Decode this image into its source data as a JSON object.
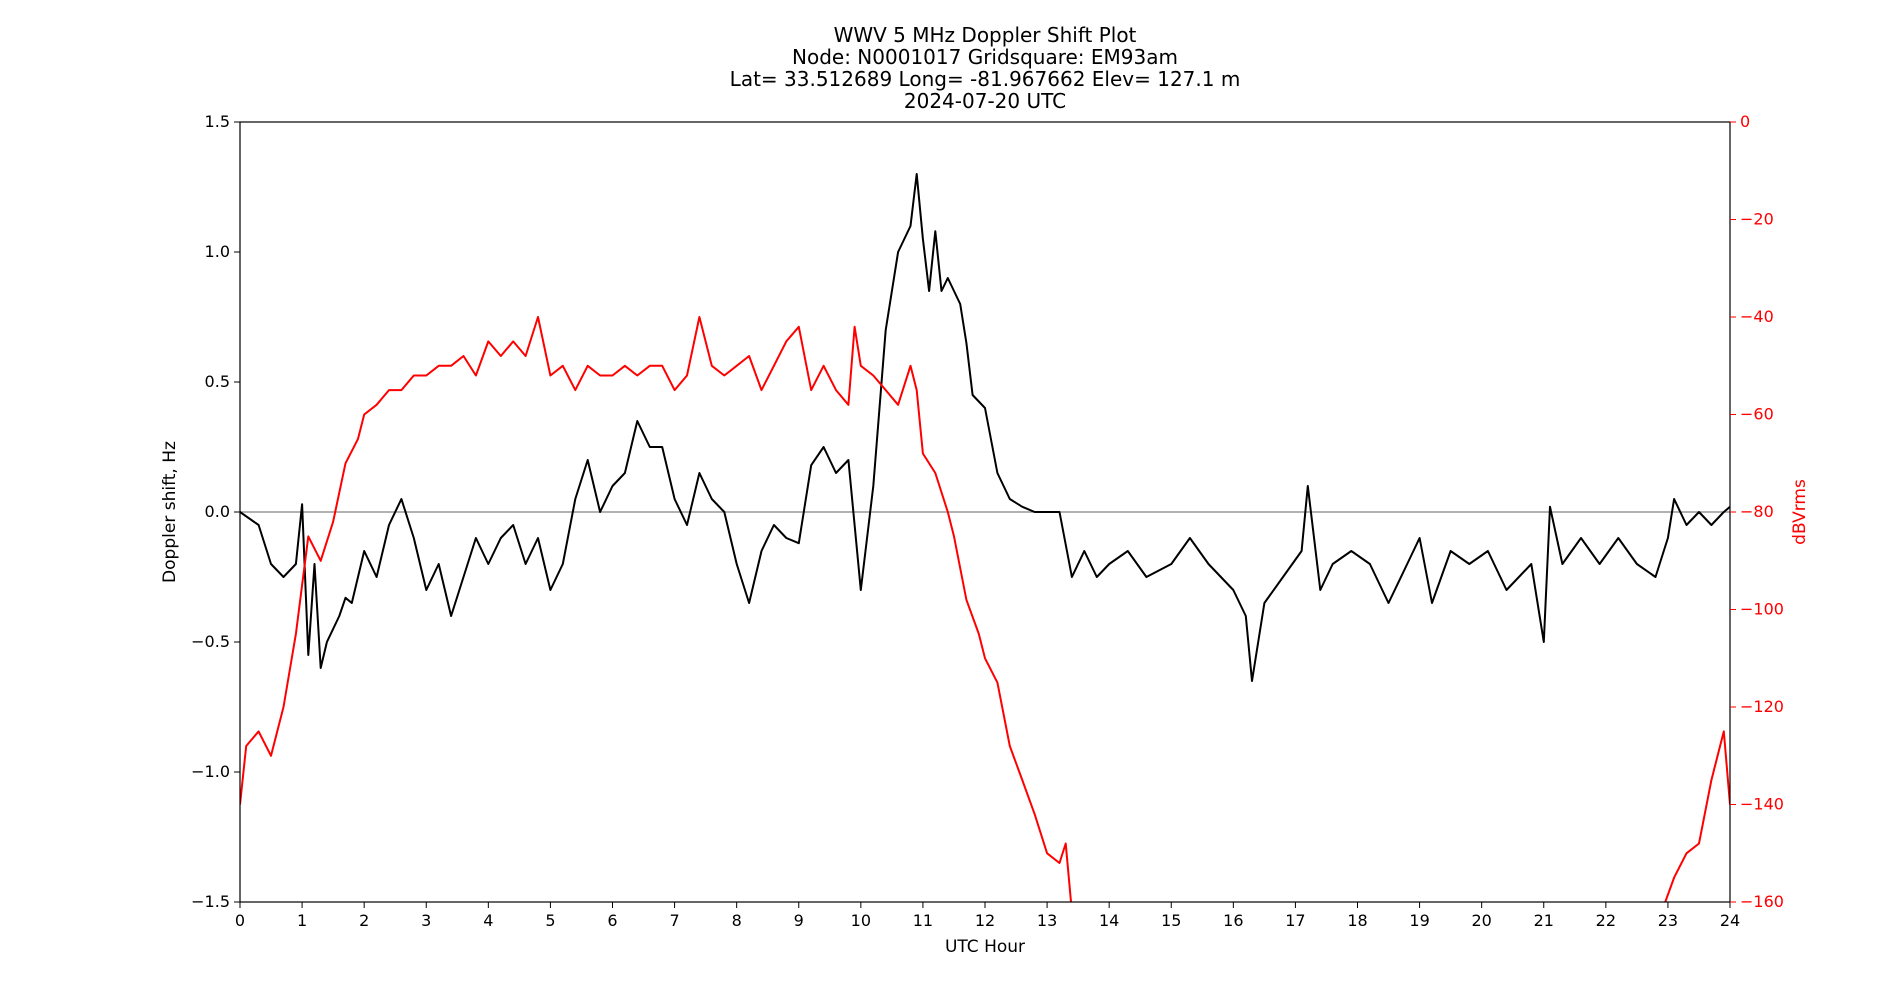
{
  "chart_data": {
    "type": "line",
    "title_lines": [
      "WWV 5 MHz Doppler Shift Plot",
      "Node:  N0001017     Gridsquare:  EM93am",
      "Lat= 33.512689    Long= -81.967662    Elev= 127.1 m",
      "2024-07-20  UTC"
    ],
    "xlabel": "UTC Hour",
    "ylabel_left": "Doppler shift, Hz",
    "ylabel_right": "dBVrms",
    "xlim": [
      0,
      24
    ],
    "ylim_left": [
      -1.5,
      1.5
    ],
    "ylim_right": [
      -160,
      0
    ],
    "x_ticks": [
      "0",
      "1",
      "2",
      "3",
      "4",
      "5",
      "6",
      "7",
      "8",
      "9",
      "10",
      "11",
      "12",
      "13",
      "14",
      "15",
      "16",
      "17",
      "18",
      "19",
      "20",
      "21",
      "22",
      "23",
      "24"
    ],
    "y_ticks_left": [
      "1.5",
      "1.0",
      "0.5",
      "0.0",
      "−0.5",
      "−1.0",
      "−1.5"
    ],
    "y_ticks_right": [
      "0",
      "−20",
      "−40",
      "−60",
      "−80",
      "−100",
      "−120",
      "−140",
      "−160"
    ],
    "zero_line": 0.0,
    "colors": {
      "doppler": "#000000",
      "power": "#ff0000",
      "zero_line": "#999999",
      "right_axis": "#ff0000"
    },
    "series": [
      {
        "axis": "left",
        "color": "black",
        "x": [
          0,
          0.3,
          0.5,
          0.7,
          0.9,
          1.0,
          1.1,
          1.2,
          1.3,
          1.4,
          1.6,
          1.7,
          1.8,
          2.0,
          2.2,
          2.4,
          2.6,
          2.8,
          3.0,
          3.2,
          3.4,
          3.6,
          3.8,
          4.0,
          4.2,
          4.4,
          4.6,
          4.8,
          5.0,
          5.2,
          5.4,
          5.6,
          5.8,
          6.0,
          6.2,
          6.4,
          6.6,
          6.8,
          7.0,
          7.2,
          7.4,
          7.6,
          7.8,
          8.0,
          8.2,
          8.4,
          8.6,
          8.8,
          9.0,
          9.2,
          9.4,
          9.6,
          9.8,
          10.0,
          10.2,
          10.4,
          10.6,
          10.8,
          10.9,
          11.0,
          11.1,
          11.2,
          11.3,
          11.4,
          11.5,
          11.6,
          11.7,
          11.8,
          12.0,
          12.2,
          12.4,
          12.6,
          12.8,
          13.0,
          13.2,
          13.4,
          13.6,
          13.8,
          14.0,
          14.3,
          14.6,
          15.0,
          15.3,
          15.6,
          16.0,
          16.2,
          16.3,
          16.5,
          16.8,
          17.1,
          17.2,
          17.4,
          17.6,
          17.9,
          18.2,
          18.5,
          18.8,
          19.0,
          19.2,
          19.5,
          19.8,
          20.1,
          20.4,
          20.6,
          20.8,
          21.0,
          21.1,
          21.3,
          21.6,
          21.9,
          22.2,
          22.5,
          22.8,
          23.0,
          23.1,
          23.3,
          23.5,
          23.7,
          23.9,
          24.0
        ],
        "y": [
          0.0,
          -0.05,
          -0.2,
          -0.25,
          -0.2,
          0.03,
          -0.55,
          -0.2,
          -0.6,
          -0.5,
          -0.4,
          -0.33,
          -0.35,
          -0.15,
          -0.25,
          -0.05,
          0.05,
          -0.1,
          -0.3,
          -0.2,
          -0.4,
          -0.25,
          -0.1,
          -0.2,
          -0.1,
          -0.05,
          -0.2,
          -0.1,
          -0.3,
          -0.2,
          0.05,
          0.2,
          0.0,
          0.1,
          0.15,
          0.35,
          0.25,
          0.25,
          0.05,
          -0.05,
          0.15,
          0.05,
          0.0,
          -0.2,
          -0.35,
          -0.15,
          -0.05,
          -0.1,
          -0.12,
          0.18,
          0.25,
          0.15,
          0.2,
          -0.3,
          0.1,
          0.7,
          1.0,
          1.1,
          1.3,
          1.05,
          0.85,
          1.08,
          0.85,
          0.9,
          0.85,
          0.8,
          0.65,
          0.45,
          0.4,
          0.15,
          0.05,
          0.02,
          0.0,
          0.0,
          0.0,
          -0.25,
          -0.15,
          -0.25,
          -0.2,
          -0.15,
          -0.25,
          -0.2,
          -0.1,
          -0.2,
          -0.3,
          -0.4,
          -0.65,
          -0.35,
          -0.25,
          -0.15,
          0.1,
          -0.3,
          -0.2,
          -0.15,
          -0.2,
          -0.35,
          -0.2,
          -0.1,
          -0.35,
          -0.15,
          -0.2,
          -0.15,
          -0.3,
          -0.25,
          -0.2,
          -0.5,
          0.02,
          -0.2,
          -0.1,
          -0.2,
          -0.1,
          -0.2,
          -0.25,
          -0.1,
          0.05,
          -0.05,
          0.0,
          -0.05,
          0.0,
          0.02
        ]
      },
      {
        "axis": "right",
        "color": "red",
        "x": [
          0,
          0.1,
          0.3,
          0.5,
          0.7,
          0.9,
          1.0,
          1.1,
          1.3,
          1.5,
          1.7,
          1.9,
          2.0,
          2.2,
          2.4,
          2.6,
          2.8,
          3.0,
          3.2,
          3.4,
          3.6,
          3.8,
          4.0,
          4.2,
          4.4,
          4.6,
          4.8,
          5.0,
          5.2,
          5.4,
          5.6,
          5.8,
          6.0,
          6.2,
          6.4,
          6.6,
          6.8,
          7.0,
          7.2,
          7.4,
          7.6,
          7.8,
          8.0,
          8.2,
          8.4,
          8.6,
          8.8,
          9.0,
          9.2,
          9.4,
          9.6,
          9.8,
          9.9,
          10.0,
          10.2,
          10.4,
          10.6,
          10.8,
          10.9,
          11.0,
          11.2,
          11.4,
          11.5,
          11.7,
          11.9,
          12.0,
          12.2,
          12.4,
          12.6,
          12.8,
          13.0,
          13.2,
          13.3,
          13.4,
          22.9,
          23.1,
          23.3,
          23.5,
          23.7,
          23.9,
          24.0
        ],
        "y": [
          -140,
          -128,
          -125,
          -130,
          -120,
          -105,
          -95,
          -85,
          -90,
          -82,
          -70,
          -65,
          -60,
          -58,
          -55,
          -55,
          -52,
          -52,
          -50,
          -50,
          -48,
          -52,
          -45,
          -48,
          -45,
          -48,
          -40,
          -52,
          -50,
          -55,
          -50,
          -52,
          -52,
          -50,
          -52,
          -50,
          -50,
          -55,
          -52,
          -40,
          -50,
          -52,
          -50,
          -48,
          -55,
          -50,
          -45,
          -42,
          -55,
          -50,
          -55,
          -58,
          -42,
          -50,
          -52,
          -55,
          -58,
          -50,
          -55,
          -68,
          -72,
          -80,
          -85,
          -98,
          -105,
          -110,
          -115,
          -128,
          -135,
          -142,
          -150,
          -152,
          -148,
          -162,
          -162,
          -155,
          -150,
          -148,
          -135,
          -125,
          -140
        ]
      }
    ]
  }
}
